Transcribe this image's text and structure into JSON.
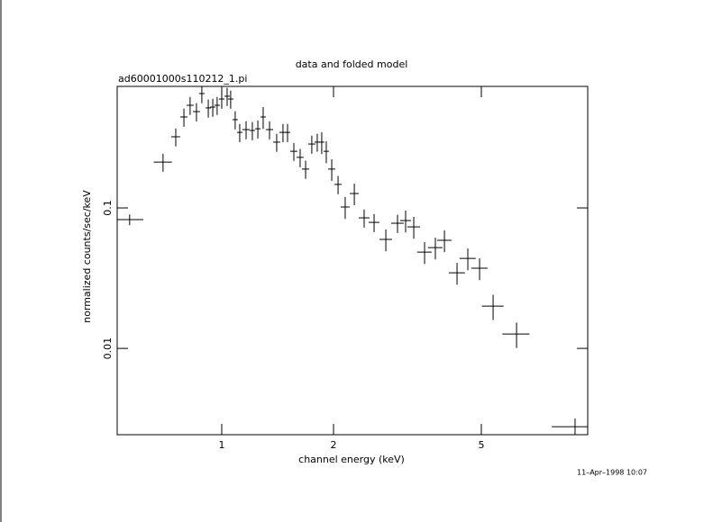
{
  "chart_data": {
    "type": "scatter",
    "title": "data and folded model",
    "subtitle": "ad60001000s110212_1.pi",
    "x_label": "channel energy (keV)",
    "y_label": "normalized counts/sec/keV",
    "timestamp": "11–Apr–1998 10:07",
    "log_x": true,
    "log_y": true,
    "color": "#000000",
    "xlim": [
      0.523,
      9.67
    ],
    "ylim": [
      0.00243,
      0.733
    ],
    "xticks": [
      1,
      2,
      5
    ],
    "yticks": [
      0.01,
      0.1
    ],
    "series": [
      {
        "name": "data",
        "x": [
          0.565,
          0.695,
          0.752,
          0.791,
          0.822,
          0.855,
          0.884,
          0.92,
          0.946,
          0.972,
          1.0,
          1.034,
          1.057,
          1.087,
          1.118,
          1.163,
          1.209,
          1.251,
          1.293,
          1.345,
          1.406,
          1.462,
          1.504,
          1.564,
          1.626,
          1.682,
          1.748,
          1.808,
          1.859,
          1.912,
          1.978,
          2.057,
          2.15,
          2.275,
          2.418,
          2.572,
          2.766,
          2.974,
          3.127,
          3.289,
          3.517,
          3.76,
          3.978,
          4.301,
          4.599,
          4.946,
          5.379,
          6.22,
          8.94
        ],
        "xerr": [
          0.05,
          0.039,
          0.021,
          0.018,
          0.018,
          0.019,
          0.015,
          0.015,
          0.016,
          0.016,
          0.017,
          0.017,
          0.018,
          0.018,
          0.019,
          0.026,
          0.02,
          0.021,
          0.022,
          0.03,
          0.031,
          0.033,
          0.025,
          0.035,
          0.036,
          0.038,
          0.039,
          0.03,
          0.031,
          0.032,
          0.044,
          0.046,
          0.06,
          0.064,
          0.081,
          0.086,
          0.108,
          0.116,
          0.105,
          0.129,
          0.157,
          0.168,
          0.178,
          0.216,
          0.231,
          0.249,
          0.361,
          0.522,
          1.2
        ],
        "values": [
          0.0826,
          0.212,
          0.321,
          0.444,
          0.538,
          0.485,
          0.652,
          0.515,
          0.522,
          0.538,
          0.596,
          0.624,
          0.596,
          0.425,
          0.345,
          0.361,
          0.356,
          0.366,
          0.444,
          0.361,
          0.294,
          0.345,
          0.345,
          0.253,
          0.229,
          0.189,
          0.285,
          0.294,
          0.294,
          0.253,
          0.189,
          0.147,
          0.1015,
          0.1266,
          0.085,
          0.0789,
          0.0597,
          0.0778,
          0.0813,
          0.0733,
          0.0485,
          0.0522,
          0.0588,
          0.0345,
          0.0437,
          0.0372,
          0.02,
          0.01267,
          0.00277
        ],
        "yerr": [
          0.0073,
          0.031,
          0.047,
          0.066,
          0.079,
          0.072,
          0.096,
          0.076,
          0.077,
          0.079,
          0.088,
          0.092,
          0.088,
          0.063,
          0.051,
          0.053,
          0.053,
          0.054,
          0.079,
          0.053,
          0.043,
          0.051,
          0.051,
          0.037,
          0.034,
          0.028,
          0.042,
          0.043,
          0.052,
          0.045,
          0.033,
          0.022,
          0.018,
          0.022,
          0.0125,
          0.0116,
          0.0106,
          0.0115,
          0.0144,
          0.013,
          0.0086,
          0.0092,
          0.0104,
          0.0061,
          0.0077,
          0.0066,
          0.0041,
          0.0026,
          0.0004
        ]
      }
    ]
  }
}
